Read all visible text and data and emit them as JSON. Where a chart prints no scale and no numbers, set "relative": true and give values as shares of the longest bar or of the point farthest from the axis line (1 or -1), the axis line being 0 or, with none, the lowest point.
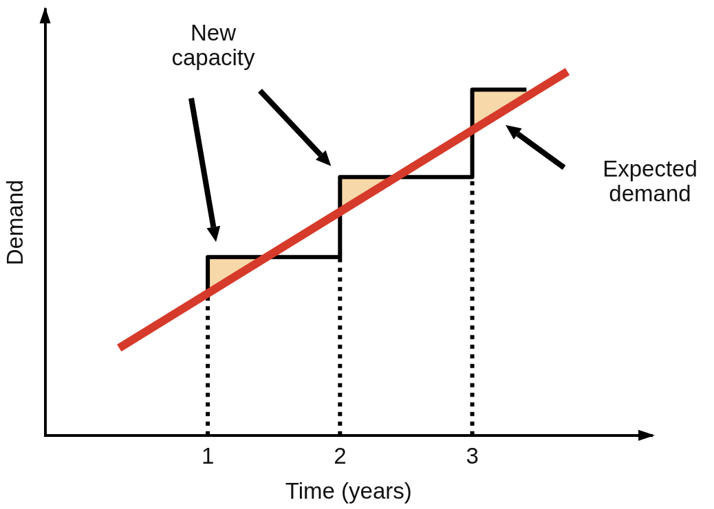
{
  "chart_data": {
    "type": "line",
    "relative": true,
    "xlabel": "Time (years)",
    "ylabel": "Demand",
    "xlim": [
      -0.23,
      4.36
    ],
    "xticks": [
      1,
      2,
      3
    ],
    "grid": false,
    "legend": false,
    "marker": "none",
    "series": [
      {
        "type": "step",
        "color": "#000000",
        "x": [
          1,
          1,
          2,
          3,
          3.41
        ],
        "values": [
          0.4,
          0.49,
          0.71,
          0.95,
          0.95
        ]
      },
      {
        "type": "line",
        "color": "#d63a2a",
        "x": [
          0.33,
          3.72
        ],
        "values": [
          0.24,
          1
        ]
      }
    ],
    "ref_lines": [
      {
        "axis": "x",
        "value": 1,
        "color": "#000000",
        "line_style": "dotted"
      },
      {
        "axis": "x",
        "value": 2,
        "color": "#000000",
        "line_style": "dotted"
      },
      {
        "axis": "x",
        "value": 3,
        "color": "#000000",
        "line_style": "dotted"
      }
    ],
    "annotations": [
      "New capacity",
      "Expected demand"
    ]
  }
}
